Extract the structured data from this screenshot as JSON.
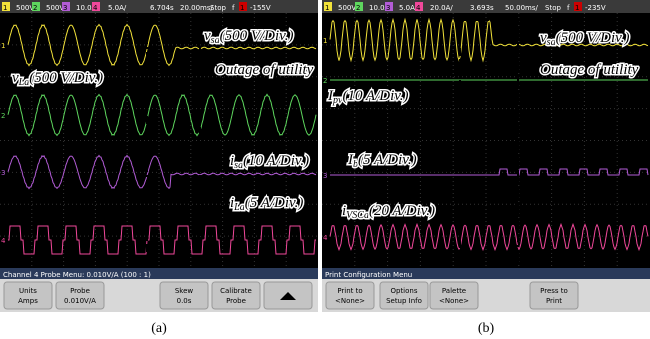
{
  "panels": [
    {
      "status_bar": [
        "1",
        "500V/",
        "2",
        "500V/",
        "3",
        "10.0A/",
        "4",
        "5.0A/",
        "6.704s",
        "20.00ms/",
        "Stop",
        "f",
        "1",
        "-155V"
      ],
      "labels": [
        {
          "var": "v",
          "sub": "sa",
          "scale": "(500 V/Div.)"
        },
        {
          "var": "v",
          "sub": "La",
          "scale": "(500 V/Div.)"
        },
        {
          "var": "i",
          "sub": "sa",
          "scale": "(10 A/Div.)"
        },
        {
          "var": "i",
          "sub": "La",
          "scale": "(5 A/Div.)"
        }
      ],
      "annotation": "Outage of utility",
      "menu_title": "Channel 4 Probe Menu: 0.010V/A (100 : 1)",
      "buttons": [
        [
          "Units",
          "Amps"
        ],
        [
          "Probe",
          "0.010V/A"
        ],
        [
          "Skew",
          "0.0s"
        ],
        [
          "Calibrate",
          "Probe"
        ]
      ],
      "caption": "(a)"
    },
    {
      "status_bar": [
        "1",
        "500V/",
        "2",
        "10.0A/",
        "3",
        "5.0A/",
        "4",
        "20.0A/",
        "3.693s",
        "50.00ms/",
        "Stop",
        "f",
        "1",
        "-235V"
      ],
      "labels": [
        {
          "var": "v",
          "sub": "sa",
          "scale": "(500 V/Div.)"
        },
        {
          "var": "I",
          "sub": "pv",
          "scale": "(10 A/Div.)"
        },
        {
          "var": "I",
          "sub": "b",
          "scale": "(5 A/Div.)"
        },
        {
          "var": "i",
          "sub": "VSCa",
          "scale": "(20 A/Div.)"
        }
      ],
      "annotation": "Outage of utility",
      "menu_title": "Print Configuration Menu",
      "buttons": [
        [
          "Print to",
          "<None>"
        ],
        [
          "Options",
          "Setup Info"
        ],
        [
          "Palette",
          "<None>"
        ],
        [
          "Press to",
          "Print"
        ]
      ],
      "caption": "(b)"
    }
  ]
}
